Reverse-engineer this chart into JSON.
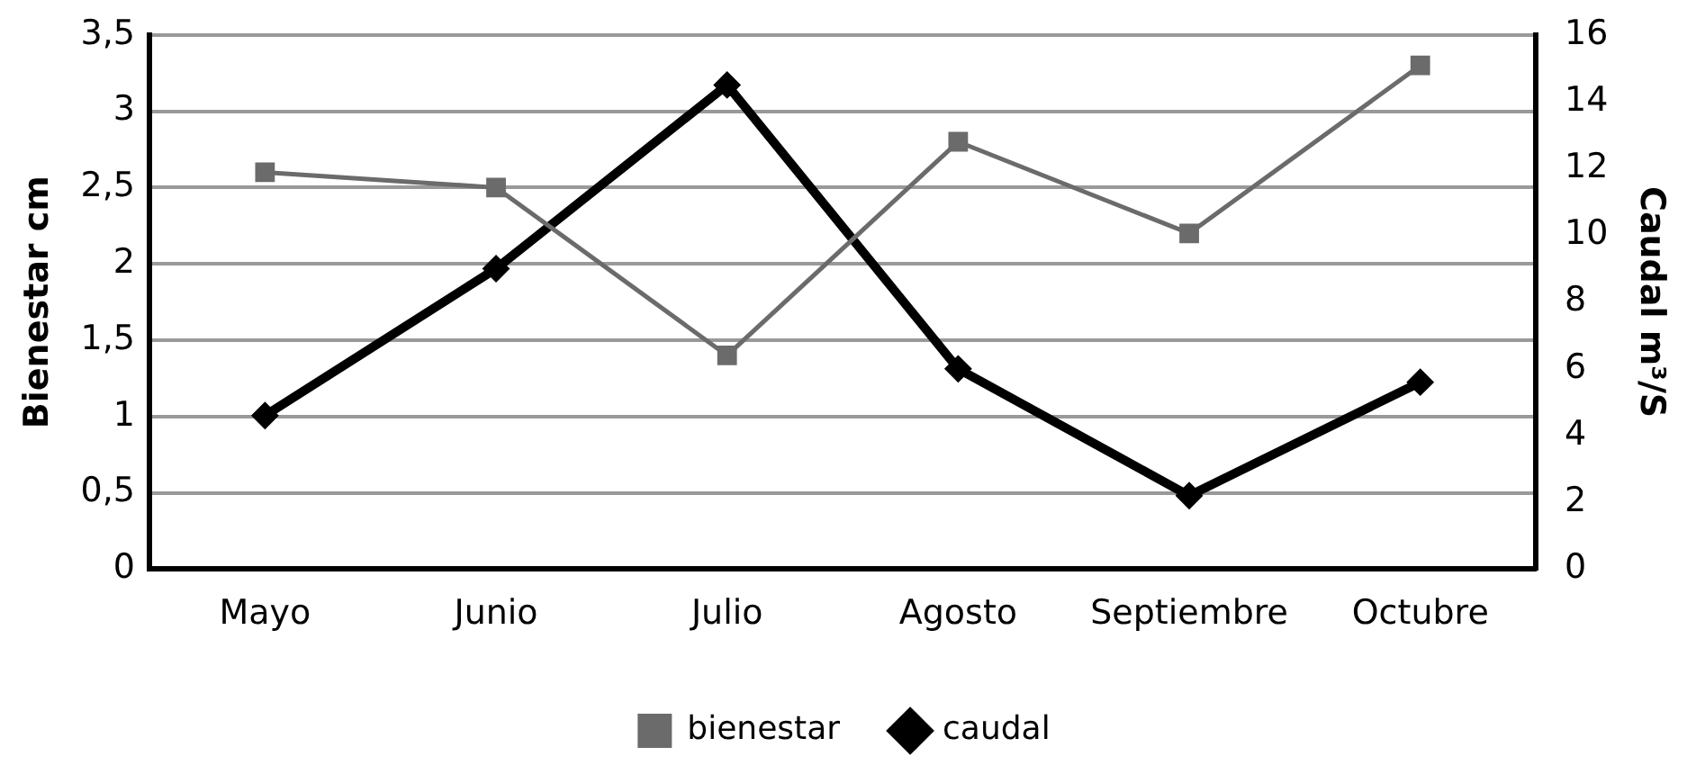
{
  "chart_data": {
    "type": "line",
    "ylabel": "Bienestar cm",
    "y2label": "Caudal m³/S",
    "categories": [
      "Mayo",
      "Junio",
      "Julio",
      "Agosto",
      "Septiembre",
      "Octubre"
    ],
    "series": [
      {
        "name": "bienestar",
        "color": "#6b6b6b",
        "marker": "square",
        "values": [
          2.6,
          2.5,
          1.4,
          2.8,
          2.2,
          3.3
        ]
      },
      {
        "name": "caudal",
        "color": "#000000",
        "marker": "diamond",
        "axis": "y2",
        "values": [
          4.6,
          9,
          14.5,
          6,
          2.2,
          5.6
        ]
      }
    ],
    "ylim": [
      0,
      3.5
    ],
    "yticks": [
      0,
      {
        "value": 0.5,
        "label": "0,5"
      },
      1,
      {
        "value": 1.5,
        "label": "1,5"
      },
      2,
      {
        "value": 2.5,
        "label": "2,5"
      },
      3,
      {
        "value": 3.5,
        "label": "3,5"
      }
    ],
    "y2lim": [
      0,
      16
    ],
    "y2ticks": [
      0,
      2,
      4,
      6,
      8,
      10,
      12,
      14,
      16
    ],
    "grid": "y",
    "legend": "bottom",
    "line_style": "solid"
  }
}
